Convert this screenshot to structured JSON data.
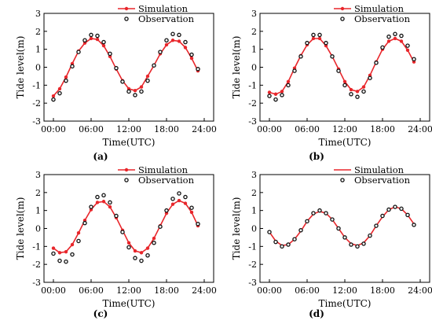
{
  "chart_data": [
    {
      "type": "line",
      "panel_label": "(a)",
      "xlabel": "Time(UTC)",
      "ylabel": "Tide level(m)",
      "ylim": [
        -3,
        3
      ],
      "xlim": [
        -1.5,
        25.5
      ],
      "x_ticks": [
        0,
        6,
        12,
        18,
        24
      ],
      "x_tick_labels": [
        "00:00",
        "06:00",
        "12:00",
        "18:00",
        "24:00"
      ],
      "y_ticks": [
        -3,
        -2,
        -1,
        0,
        1,
        2,
        3
      ],
      "legend": {
        "position": "top-right",
        "entries": [
          "Simulation",
          "Observation"
        ]
      },
      "series": [
        {
          "name": "Simulation",
          "style": "line+marker",
          "color": "#e8262b",
          "x": [
            0,
            1,
            2,
            3,
            4,
            5,
            6,
            7,
            8,
            9,
            10,
            11,
            12,
            13,
            14,
            15,
            16,
            17,
            18,
            19,
            20,
            21,
            22,
            23
          ],
          "y": [
            -1.6,
            -1.2,
            -0.55,
            0.2,
            0.9,
            1.35,
            1.6,
            1.55,
            1.2,
            0.6,
            -0.1,
            -0.75,
            -1.2,
            -1.3,
            -1.1,
            -0.5,
            0.1,
            0.75,
            1.25,
            1.5,
            1.45,
            1.1,
            0.5,
            -0.2
          ]
        },
        {
          "name": "Observation",
          "style": "marker",
          "color": "#111111",
          "x": [
            0,
            1,
            2,
            3,
            4,
            5,
            6,
            7,
            8,
            9,
            10,
            11,
            12,
            13,
            14,
            15,
            16,
            17,
            18,
            19,
            20,
            21,
            22,
            23
          ],
          "y": [
            -1.8,
            -1.45,
            -0.75,
            0.05,
            0.85,
            1.5,
            1.8,
            1.75,
            1.4,
            0.75,
            -0.05,
            -0.8,
            -1.35,
            -1.55,
            -1.35,
            -0.75,
            0.1,
            0.85,
            1.5,
            1.85,
            1.8,
            1.4,
            0.7,
            -0.1
          ]
        }
      ]
    },
    {
      "type": "line",
      "panel_label": "(b)",
      "xlabel": "Time(UTC)",
      "ylabel": "Tide level(m)",
      "ylim": [
        -3,
        3
      ],
      "xlim": [
        -1.5,
        25.5
      ],
      "x_ticks": [
        0,
        6,
        12,
        18,
        24
      ],
      "x_tick_labels": [
        "00:00",
        "06:00",
        "12:00",
        "18:00",
        "24:00"
      ],
      "y_ticks": [
        -3,
        -2,
        -1,
        0,
        1,
        2,
        3
      ],
      "legend": {
        "position": "top-right",
        "entries": [
          "Simulation",
          "Observation"
        ]
      },
      "series": [
        {
          "name": "Simulation",
          "style": "line+marker",
          "color": "#e8262b",
          "x": [
            0,
            1,
            2,
            3,
            4,
            5,
            6,
            7,
            8,
            9,
            10,
            11,
            12,
            13,
            14,
            15,
            16,
            17,
            18,
            19,
            20,
            21,
            22,
            23
          ],
          "y": [
            -1.4,
            -1.5,
            -1.35,
            -0.8,
            -0.05,
            0.65,
            1.25,
            1.6,
            1.6,
            1.2,
            0.6,
            -0.1,
            -0.8,
            -1.25,
            -1.35,
            -1.1,
            -0.45,
            0.3,
            1.0,
            1.45,
            1.6,
            1.45,
            0.95,
            0.3
          ]
        },
        {
          "name": "Observation",
          "style": "marker",
          "color": "#111111",
          "x": [
            0,
            1,
            2,
            3,
            4,
            5,
            6,
            7,
            8,
            9,
            10,
            11,
            12,
            13,
            14,
            15,
            16,
            17,
            18,
            19,
            20,
            21,
            22,
            23
          ],
          "y": [
            -1.6,
            -1.8,
            -1.55,
            -1.0,
            -0.2,
            0.6,
            1.35,
            1.8,
            1.8,
            1.35,
            0.6,
            -0.2,
            -1.0,
            -1.5,
            -1.65,
            -1.35,
            -0.6,
            0.25,
            1.1,
            1.7,
            1.85,
            1.75,
            1.2,
            0.45
          ]
        }
      ]
    },
    {
      "type": "line",
      "panel_label": "(c)",
      "xlabel": "Time(UTC)",
      "ylabel": "Tide level(m)",
      "ylim": [
        -3,
        3
      ],
      "xlim": [
        -1.5,
        25.5
      ],
      "x_ticks": [
        0,
        6,
        12,
        18,
        24
      ],
      "x_tick_labels": [
        "00:00",
        "06:00",
        "12:00",
        "18:00",
        "24:00"
      ],
      "y_ticks": [
        -3,
        -2,
        -1,
        0,
        1,
        2,
        3
      ],
      "legend": {
        "position": "top-right",
        "entries": [
          "Simulation",
          "Observation"
        ]
      },
      "series": [
        {
          "name": "Simulation",
          "style": "line+marker",
          "color": "#e8262b",
          "x": [
            0,
            1,
            2,
            3,
            4,
            5,
            6,
            7,
            8,
            9,
            10,
            11,
            12,
            13,
            14,
            15,
            16,
            17,
            18,
            19,
            20,
            21,
            22,
            23
          ],
          "y": [
            -1.1,
            -1.35,
            -1.3,
            -0.9,
            -0.25,
            0.45,
            1.05,
            1.45,
            1.5,
            1.2,
            0.6,
            -0.1,
            -0.8,
            -1.25,
            -1.35,
            -1.1,
            -0.55,
            0.15,
            0.85,
            1.35,
            1.55,
            1.4,
            0.9,
            0.15
          ]
        },
        {
          "name": "Observation",
          "style": "marker",
          "color": "#111111",
          "x": [
            0,
            1,
            2,
            3,
            4,
            5,
            6,
            7,
            8,
            9,
            10,
            11,
            12,
            13,
            14,
            15,
            16,
            17,
            18,
            19,
            20,
            21,
            22,
            23
          ],
          "y": [
            -1.4,
            -1.8,
            -1.85,
            -1.45,
            -0.7,
            0.3,
            1.2,
            1.75,
            1.85,
            1.45,
            0.7,
            -0.2,
            -1.05,
            -1.65,
            -1.8,
            -1.5,
            -0.8,
            0.1,
            1.0,
            1.65,
            1.95,
            1.75,
            1.15,
            0.25
          ]
        }
      ]
    },
    {
      "type": "line",
      "panel_label": "(d)",
      "xlabel": "Time(UTC)",
      "ylabel": "Tide level(m)",
      "ylim": [
        -3,
        3
      ],
      "xlim": [
        -1.5,
        25.5
      ],
      "x_ticks": [
        0,
        6,
        12,
        18,
        24
      ],
      "x_tick_labels": [
        "00:00",
        "06:00",
        "12:00",
        "18:00",
        "24:00"
      ],
      "y_ticks": [
        -3,
        -2,
        -1,
        0,
        1,
        2,
        3
      ],
      "legend": {
        "position": "top-right",
        "entries": [
          "Simulation",
          "Observation"
        ]
      },
      "series": [
        {
          "name": "Simulation",
          "style": "line",
          "color": "#e8262b",
          "x": [
            0,
            1,
            2,
            3,
            4,
            5,
            6,
            7,
            8,
            9,
            10,
            11,
            12,
            13,
            14,
            15,
            16,
            17,
            18,
            19,
            20,
            21,
            22,
            23
          ],
          "y": [
            -0.2,
            -0.7,
            -0.95,
            -0.9,
            -0.6,
            -0.15,
            0.4,
            0.8,
            0.95,
            0.85,
            0.5,
            0.0,
            -0.5,
            -0.85,
            -0.95,
            -0.8,
            -0.4,
            0.15,
            0.65,
            1.05,
            1.2,
            1.1,
            0.75,
            0.25
          ]
        },
        {
          "name": "Observation",
          "style": "marker",
          "color": "#111111",
          "x": [
            0,
            1,
            2,
            3,
            4,
            5,
            6,
            7,
            8,
            9,
            10,
            11,
            12,
            13,
            14,
            15,
            16,
            17,
            18,
            19,
            20,
            21,
            22,
            23
          ],
          "y": [
            -0.2,
            -0.75,
            -1.0,
            -0.9,
            -0.6,
            -0.1,
            0.4,
            0.85,
            1.0,
            0.85,
            0.5,
            0.0,
            -0.5,
            -0.9,
            -1.0,
            -0.85,
            -0.4,
            0.15,
            0.7,
            1.05,
            1.2,
            1.1,
            0.75,
            0.2
          ]
        }
      ]
    }
  ]
}
